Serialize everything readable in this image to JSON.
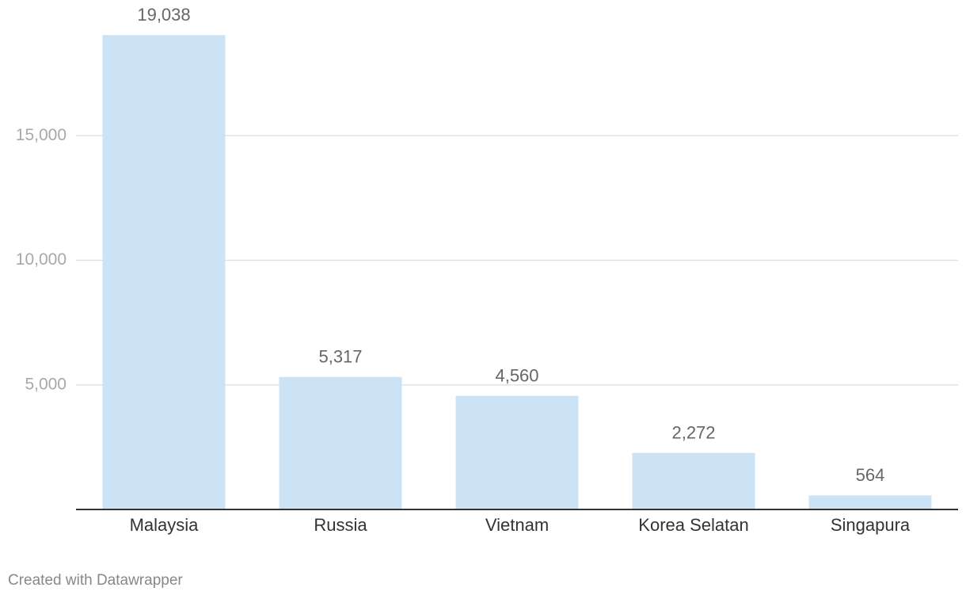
{
  "chart_data": {
    "type": "bar",
    "categories": [
      "Malaysia",
      "Russia",
      "Vietnam",
      "Korea Selatan",
      "Singapura"
    ],
    "values": [
      19038,
      5317,
      4560,
      2272,
      564
    ],
    "value_labels": [
      "19,038",
      "5,317",
      "4,560",
      "2,272",
      "564"
    ],
    "color": "#cce3f6",
    "ylim": [
      0,
      20000
    ],
    "yticks": [
      {
        "value": 5000,
        "label": "5,000"
      },
      {
        "value": 10000,
        "label": "10,000"
      },
      {
        "value": 15000,
        "label": "15,000"
      }
    ],
    "grid": true,
    "credit": "Created with Datawrapper"
  }
}
